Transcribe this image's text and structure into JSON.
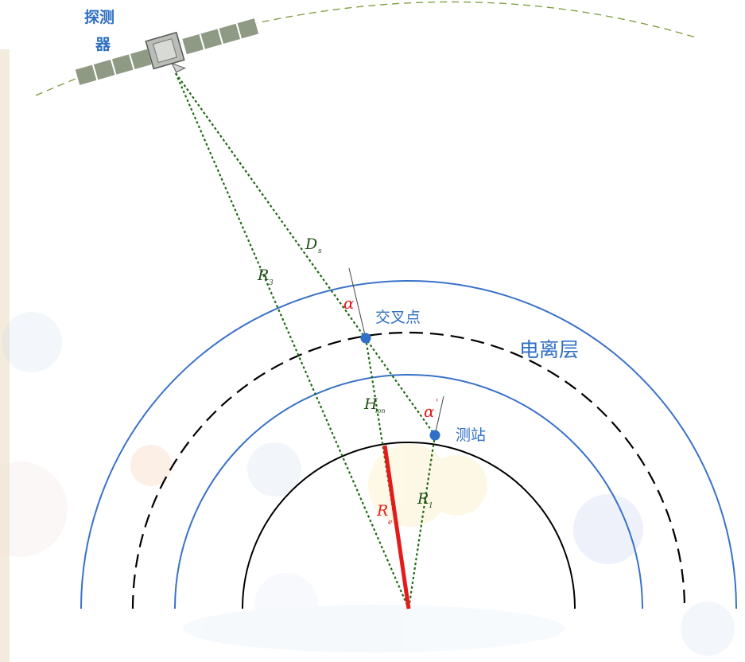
{
  "labels": {
    "probe_line1": "探测",
    "probe_line2": "器",
    "ionosphere": "电离层",
    "pierce_point": "交叉点",
    "station": "测站",
    "Ds_main": "D",
    "Ds_sub": "s",
    "R3_main": "R",
    "R3_sub": "3",
    "H_main": "H",
    "H_sub": "ion",
    "Re_main": "R",
    "Re_sub": "e",
    "R1_main": "R",
    "R1_sub": "1",
    "alpha": "α",
    "alpha_prime": "α",
    "alpha_prime_mark": "'"
  },
  "colors": {
    "circle_outer": "#3a72c8",
    "circle_dashed": "#000000",
    "circle_earth": "#000000",
    "sight_lines": "#1e6b12",
    "orbit": "#7a9a3a",
    "earth_radius": "#e31b1b",
    "alpha_label": "#e31b1b",
    "point_fill": "#2f6fc4",
    "text_blue": "#2f6fc4"
  },
  "icons": {
    "satellite": "satellite-icon",
    "pierce_point": "pierce-point-dot",
    "station": "station-dot"
  }
}
